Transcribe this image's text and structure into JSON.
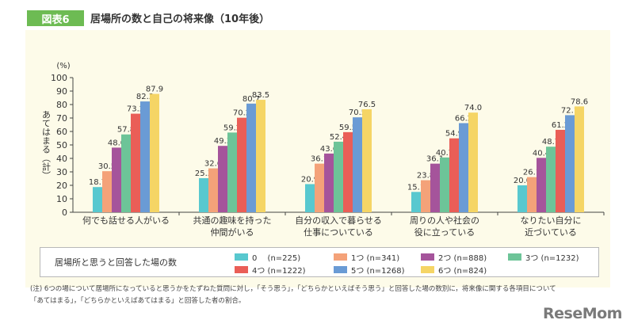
{
  "figure": {
    "label": "図表6",
    "title": "居場所の数と自己の将来像（10年後）",
    "note": "(注) 6つの場について居場所になっていると思うかをたずねた質問に対し，「そう思う」，「どちらかといえばそう思う」と回答した場の数別に，将来像に関する各項目について「あてはまる」，「どちらかといえばあてはまる」と回答した者の割合。",
    "logo": "ReseMom"
  },
  "chart_data": {
    "type": "bar",
    "title": "居場所の数と自己の将来像（10年後）",
    "unit": "(%)",
    "ylabel": "あてはまる（計）",
    "ylim": [
      0,
      100
    ],
    "yticks": [
      0,
      10,
      20,
      30,
      40,
      50,
      60,
      70,
      80,
      90,
      100
    ],
    "categories": [
      [
        "何でも話せる人がいる"
      ],
      [
        "共通の趣味を持った",
        "仲間がいる"
      ],
      [
        "自分の収入で暮らせる",
        "仕事についている"
      ],
      [
        "周りの人や社会の",
        "役に立っている"
      ],
      [
        "なりたい自分に",
        "近づいている"
      ]
    ],
    "legend_title": "居場所と思うと回答した場の数",
    "series": [
      {
        "name": "0　 (n=225)",
        "color": "#58c8cf",
        "values": [
          18.7,
          25.3,
          20.9,
          15.1,
          20.0
        ]
      },
      {
        "name": "1つ (n=341)",
        "color": "#f4a279",
        "values": [
          30.5,
          32.6,
          36.1,
          23.8,
          26.1
        ]
      },
      {
        "name": "2つ (n=888)",
        "color": "#a5549b",
        "values": [
          48.0,
          49.3,
          43.6,
          36.1,
          40.4
        ]
      },
      {
        "name": "3つ (n=1232)",
        "color": "#6dc498",
        "values": [
          57.8,
          59.2,
          52.4,
          40.7,
          48.7
        ]
      },
      {
        "name": "4つ (n=1222)",
        "color": "#ea5e57",
        "values": [
          73.2,
          70.2,
          59.5,
          54.9,
          61.2
        ]
      },
      {
        "name": "5つ (n=1268)",
        "color": "#6a9bd5",
        "values": [
          82.3,
          80.7,
          70.5,
          66.2,
          72.1
        ]
      },
      {
        "name": "6つ (n=824)",
        "color": "#f5d565",
        "values": [
          87.9,
          83.5,
          76.5,
          74.0,
          78.6
        ]
      }
    ],
    "value_labels": [
      [
        "18.7",
        "30.5",
        "48.0",
        "57.8",
        "73.2",
        "82.3",
        "87.9"
      ],
      [
        "25.3",
        "32.6",
        "49.3",
        "59.2",
        "70.2",
        "80.7",
        "83.5"
      ],
      [
        "20.9",
        "36.1",
        "43.6",
        "52.4",
        "59.5",
        "70.5",
        "76.5"
      ],
      [
        "15.1",
        "23.8",
        "36.1",
        "40.7",
        "54.9",
        "66.2",
        "74.0"
      ],
      [
        "20.0",
        "26.1",
        "40.4",
        "48.7",
        "61.2",
        "72.1",
        "78.6"
      ]
    ],
    "legend_placement": "bottom",
    "grid": false
  }
}
